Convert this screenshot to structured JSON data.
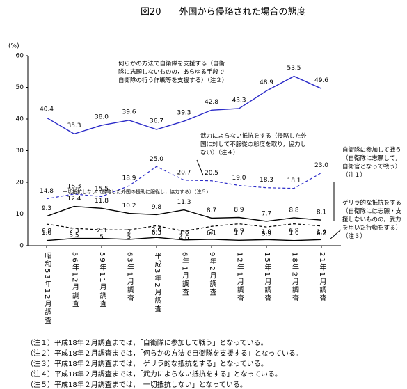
{
  "chart_data": {
    "type": "line",
    "title": "図20　　外国から侵略された場合の態度",
    "y_label": "(%)",
    "categories": [
      "昭和53年12月調査",
      "56年12月調査",
      "59年11月調査",
      "63年1月調査",
      "平成3年2月調査",
      "6年1月調査",
      "9年2月調査",
      "12年1月調査",
      "15年1月調査",
      "18年2月調査",
      "21年1月調査"
    ],
    "ylim": [
      0,
      60
    ],
    "yticks": [
      0,
      10,
      20,
      30,
      40,
      50,
      60
    ],
    "series": [
      {
        "name": "何らかの方法で自衛隊を支援する（自衛隊に志願しないものの，あらゆる手段で自衛隊の行う作戦等を支援する）（注２）",
        "color": "#2b2bc8",
        "dashed": false,
        "values": [
          40.4,
          35.3,
          38.0,
          39.6,
          36.7,
          39.3,
          42.8,
          43.3,
          48.9,
          53.5,
          49.6
        ],
        "value_labels": [
          "40.4",
          "35.3",
          "38.0",
          "39.6",
          "36.7",
          "39.3",
          "42.8",
          "43.3",
          "48.9",
          "53.5",
          "49.6"
        ]
      },
      {
        "name": "武力によらない抵抗をする（侵略した外国に対して不服従の態度を取り，協力しない）（注４）",
        "color": "#2b2bc8",
        "dashed": true,
        "values": [
          14.8,
          16.3,
          15.5,
          18.9,
          25.0,
          20.7,
          20.5,
          19.0,
          18.3,
          18.1,
          23.0
        ],
        "value_labels": [
          "14.8",
          "16.3",
          "15.5",
          "18.9",
          "25.0",
          "20.7",
          "20.5",
          "19.0",
          "18.3",
          "18.1",
          "23.0"
        ]
      },
      {
        "name": "一切抵抗しない（侵略した外国の援助に服従し，協力する）（注５）",
        "color": "#000000",
        "dashed": false,
        "values": [
          9.3,
          12.4,
          11.8,
          10.2,
          9.8,
          11.3,
          8.7,
          8.9,
          7.7,
          8.8,
          8.1
        ]
      },
      {
        "name": "自衛隊に参加して戦う（自衛隊に志願して，自衛官となって戦う）（注１）",
        "color": "#000000",
        "dashed": true,
        "values": [
          6.8,
          5.5,
          5.0,
          5.0,
          6.3,
          4.6,
          6.1,
          6.9,
          5.9,
          6.9,
          6.2
        ]
      },
      {
        "name": "ゲリラ的な抵抗をする（自衛隊には志願・支援しないものの，武力を用いた行動をする）（注３）",
        "color": "#000000",
        "dashed": false,
        "values": [
          1.6,
          2.3,
          2.3,
          2.0,
          2.6,
          1.8,
          2.0,
          1.7,
          1.9,
          1.6,
          1.9
        ]
      }
    ],
    "notes": [
      "（注１）平成18年２月調査までは，「自衛隊に参加して戦う」となっている。",
      "（注２）平成18年２月調査までは，「何らかの方法で自衛隊を支援する」となっている。",
      "（注３）平成18年２月調査までは，「ゲリラ的な抵抗をする」となっている。",
      "（注４）平成18年２月調査までは，「武力によらない抵抗をする」となっている。",
      "（注５）平成18年２月調査までは，「一切抵抗しない」となっている。"
    ]
  }
}
